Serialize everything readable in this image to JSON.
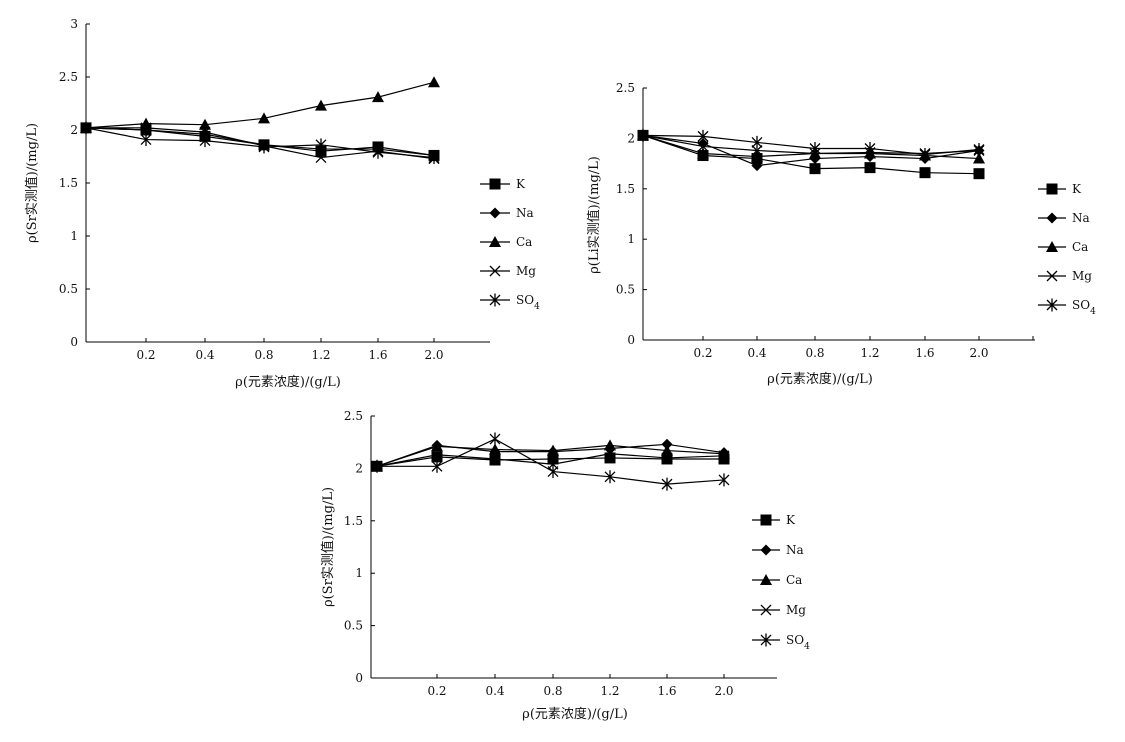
{
  "chart_data": [
    {
      "type": "line",
      "title": "",
      "xlabel": "ρ(元素浓度)/(g/L)",
      "ylabel": "ρ(Sr实测值)/(mg/L)",
      "x": [
        0,
        0.2,
        0.4,
        0.8,
        1.2,
        1.6,
        2.0
      ],
      "x_tick_labels": [
        "0.2",
        "0.4",
        "0.8",
        "1.2",
        "1.6",
        "2.0"
      ],
      "ylim": [
        0,
        3
      ],
      "y_ticks": [
        "0",
        "0.5",
        "1",
        "1.5",
        "2",
        "2.5",
        "3"
      ],
      "legend_position": "right",
      "series": [
        {
          "name": "K",
          "marker": "square",
          "values": [
            2.02,
            2.0,
            1.94,
            1.86,
            1.8,
            1.84,
            1.76
          ]
        },
        {
          "name": "Na",
          "marker": "diamond",
          "values": [
            2.02,
            2.0,
            1.96,
            1.86,
            1.82,
            1.82,
            1.76
          ]
        },
        {
          "name": "Ca",
          "marker": "triangle",
          "values": [
            2.02,
            2.06,
            2.05,
            2.11,
            2.23,
            2.31,
            2.45
          ]
        },
        {
          "name": "Mg",
          "marker": "x",
          "values": [
            2.02,
            2.02,
            1.98,
            1.85,
            1.74,
            1.8,
            1.73
          ]
        },
        {
          "name": "SO4",
          "marker": "star",
          "values": [
            2.02,
            1.91,
            1.9,
            1.84,
            1.86,
            1.79,
            1.74
          ]
        }
      ]
    },
    {
      "type": "line",
      "title": "",
      "xlabel": "ρ(元素浓度)/(g/L)",
      "ylabel": "ρ(Li实测值)/(mg/L)",
      "x": [
        0,
        0.2,
        0.4,
        0.8,
        1.2,
        1.6,
        2.0
      ],
      "x_tick_labels": [
        "0.2",
        "0.4",
        "0.8",
        "1.2",
        "1.6",
        "2.0"
      ],
      "ylim": [
        0,
        2.5
      ],
      "y_ticks": [
        "0",
        "0.5",
        "1",
        "1.5",
        "2",
        "2.5"
      ],
      "legend_position": "right",
      "series": [
        {
          "name": "K",
          "marker": "square",
          "values": [
            2.03,
            1.83,
            1.8,
            1.7,
            1.71,
            1.66,
            1.65
          ]
        },
        {
          "name": "Na",
          "marker": "diamond",
          "values": [
            2.03,
            1.95,
            1.73,
            1.8,
            1.82,
            1.8,
            1.88
          ]
        },
        {
          "name": "Ca",
          "marker": "triangle",
          "values": [
            2.03,
            1.85,
            1.82,
            1.85,
            1.85,
            1.83,
            1.8
          ]
        },
        {
          "name": "Mg",
          "marker": "x",
          "values": [
            2.03,
            1.92,
            1.88,
            1.85,
            1.86,
            1.85,
            1.88
          ]
        },
        {
          "name": "SO4",
          "marker": "star",
          "values": [
            2.03,
            2.02,
            1.96,
            1.9,
            1.9,
            1.84,
            1.89
          ]
        }
      ]
    },
    {
      "type": "line",
      "title": "",
      "xlabel": "ρ(元素浓度)/(g/L)",
      "ylabel": "ρ(Sr实测值)/(mg/L)",
      "x": [
        0,
        0.2,
        0.4,
        0.8,
        1.2,
        1.6,
        2.0
      ],
      "x_tick_labels": [
        "0.2",
        "0.4",
        "0.8",
        "1.2",
        "1.6",
        "2.0"
      ],
      "ylim": [
        0,
        2.5
      ],
      "y_ticks": [
        "0",
        "0.5",
        "1",
        "1.5",
        "2",
        "2.5"
      ],
      "legend_position": "right",
      "series": [
        {
          "name": "K",
          "marker": "square",
          "values": [
            2.02,
            2.11,
            2.08,
            2.09,
            2.1,
            2.09,
            2.09
          ]
        },
        {
          "name": "Na",
          "marker": "diamond",
          "values": [
            2.02,
            2.22,
            2.16,
            2.16,
            2.19,
            2.23,
            2.15
          ]
        },
        {
          "name": "Ca",
          "marker": "triangle",
          "values": [
            2.02,
            2.21,
            2.18,
            2.17,
            2.22,
            2.17,
            2.14
          ]
        },
        {
          "name": "Mg",
          "marker": "x",
          "values": [
            2.02,
            2.13,
            2.09,
            2.04,
            2.14,
            2.1,
            2.12
          ]
        },
        {
          "name": "SO4",
          "marker": "star",
          "values": [
            2.02,
            2.02,
            2.28,
            1.97,
            1.92,
            1.85,
            1.89
          ]
        }
      ]
    }
  ]
}
